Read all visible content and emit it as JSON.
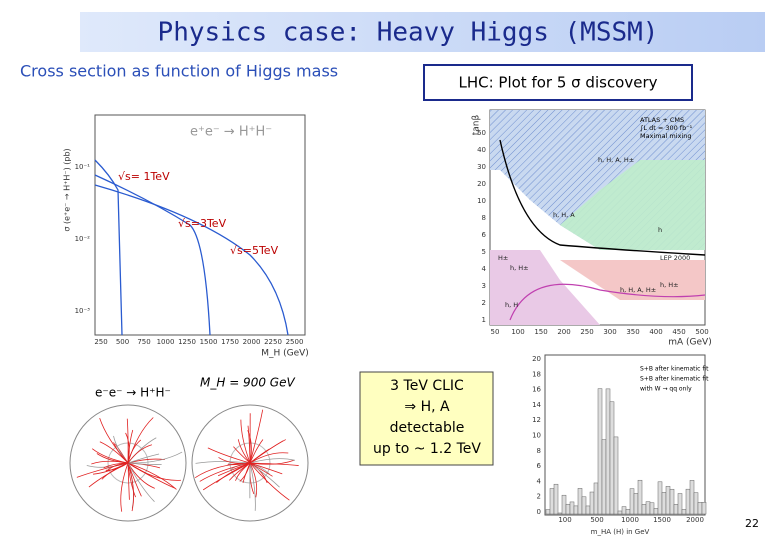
{
  "title": "Physics case: Heavy Higgs (MSSM)",
  "subtitle": "Cross section as function of Higgs mass",
  "lhc_box": "LHC: Plot for 5 σ discovery",
  "left_plot": {
    "process": "e⁺e⁻ → H⁺H⁻",
    "curves": [
      "√s= 1TeV",
      "√s=3TeV",
      "√s=5TeV"
    ],
    "x_label": "M_H (GeV)",
    "y_label": "σ (e⁺e⁻ → H⁺H⁻) (pb)",
    "x_ticks": [
      250,
      500,
      750,
      1000,
      1250,
      1500,
      1750,
      2000,
      2250,
      2500
    ],
    "y_ticks": [
      "10⁻¹",
      "10⁻²",
      "10⁻³"
    ]
  },
  "right_plot": {
    "legend": [
      "ATLAS + CMS",
      "∫L dt = 300 fb⁻¹",
      "Maximal mixing"
    ],
    "x_label": "mA (GeV)",
    "y_label": "tanβ",
    "x_ticks": [
      50,
      100,
      150,
      200,
      250,
      300,
      350,
      400,
      450,
      500
    ],
    "y_ticks": [
      1,
      2,
      3,
      4,
      5,
      6,
      8,
      10,
      20,
      30,
      40,
      50
    ],
    "regions": [
      "h, H, A, H±",
      "h, H, A",
      "h",
      "H±",
      "h, H±",
      "h, H",
      "LEP 2000",
      "h, H, A, H±",
      "h, H±"
    ]
  },
  "event": {
    "caption": "e⁻e⁻ → H⁺H⁻",
    "mass": "M_H = 900 GeV"
  },
  "clic_box": [
    "3 TeV CLIC",
    "⇒ H, A",
    "detectable",
    "up to ~ 1.2 TeV"
  ],
  "histogram": {
    "legend": [
      "S+B after kinematic fit",
      "S+B after kinematic fit",
      "with W → qq only"
    ],
    "x_label": "m_HA (H) in GeV",
    "x_ticks": [
      100,
      500,
      1000,
      1500,
      2000
    ],
    "y_ticks": [
      0,
      2,
      4,
      6,
      8,
      10,
      12,
      14,
      16,
      18,
      20
    ]
  },
  "page_number": "22"
}
